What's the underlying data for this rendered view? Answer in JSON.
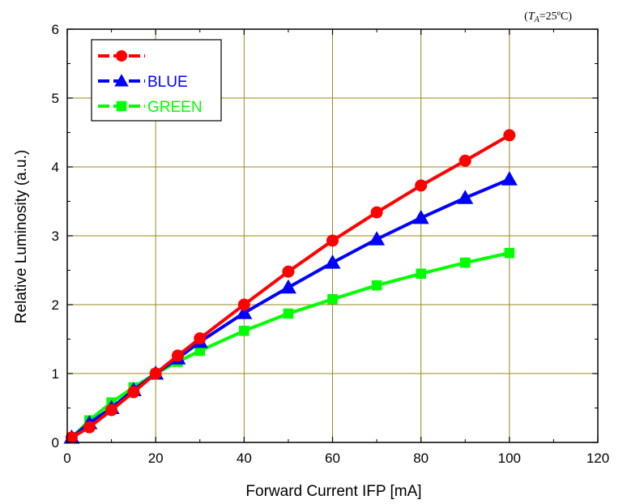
{
  "condition_note": {
    "prefix": "(",
    "symbol": "T",
    "subscript": "A",
    "rest": "=25ºC)"
  },
  "chart_data": {
    "type": "line",
    "title": "",
    "xlabel": "Forward Current IFP [mA]",
    "ylabel": "Relative Luminosity (a.u.)",
    "xlim": [
      0,
      120
    ],
    "ylim": [
      0,
      6
    ],
    "xticks": [
      0,
      20,
      40,
      60,
      80,
      100,
      120
    ],
    "yticks": [
      0,
      1,
      2,
      3,
      4,
      5,
      6
    ],
    "grid": true,
    "legend_position": "top-left",
    "series": [
      {
        "label": "",
        "color": "#ff0000",
        "marker": "circle",
        "x": [
          1,
          5,
          10,
          15,
          20,
          25,
          30,
          40,
          50,
          60,
          70,
          80,
          90,
          100
        ],
        "y": [
          0.07,
          0.22,
          0.47,
          0.73,
          1.0,
          1.26,
          1.51,
          2.0,
          2.48,
          2.93,
          3.34,
          3.73,
          4.09,
          4.46
        ]
      },
      {
        "name": "BLUE",
        "color": "#0000ff",
        "marker": "triangle",
        "x": [
          1,
          5,
          10,
          15,
          20,
          25,
          30,
          40,
          50,
          60,
          70,
          80,
          90,
          100
        ],
        "y": [
          0.07,
          0.28,
          0.5,
          0.76,
          1.0,
          1.22,
          1.46,
          1.88,
          2.25,
          2.61,
          2.95,
          3.26,
          3.55,
          3.82
        ]
      },
      {
        "name": "GREEN",
        "color": "#00ff00",
        "marker": "square",
        "x": [
          1,
          5,
          10,
          15,
          20,
          25,
          30,
          40,
          50,
          60,
          70,
          80,
          90,
          100
        ],
        "y": [
          0.07,
          0.32,
          0.58,
          0.8,
          1.0,
          1.17,
          1.33,
          1.62,
          1.87,
          2.08,
          2.28,
          2.45,
          2.61,
          2.75
        ]
      }
    ]
  }
}
